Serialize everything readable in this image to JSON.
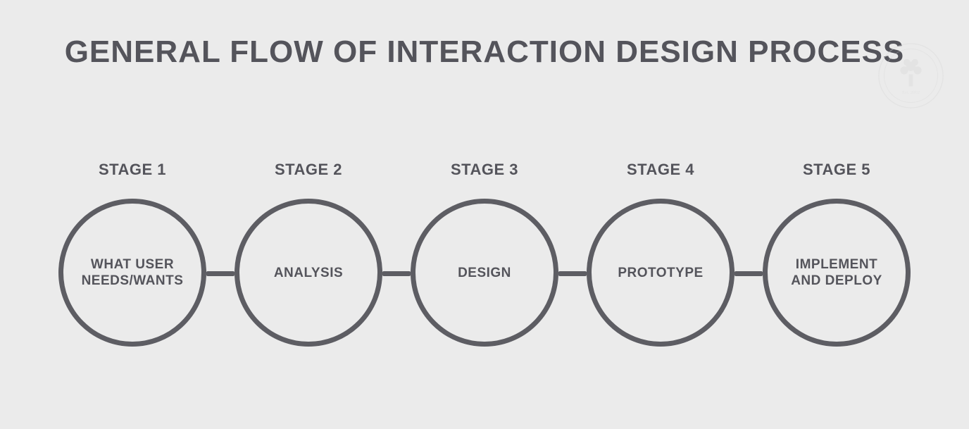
{
  "title": "GENERAL FLOW OF INTERACTION DESIGN PROCESS",
  "title_fontsize": 44,
  "title_color": "#54545b",
  "background_color": "#ebebeb",
  "stage_label_fontsize": 22,
  "stage_label_color": "#54545b",
  "circle_diameter": 210,
  "circle_border_width": 7,
  "circle_border_color": "#5d5d63",
  "circle_fill_color": "#ebebeb",
  "circle_text_fontsize": 19,
  "circle_text_color": "#54545b",
  "connector_width": 40,
  "connector_height": 7,
  "connector_color": "#5d5d63",
  "stages": [
    {
      "label": "STAGE 1",
      "content": "WHAT USER NEEDS/WANTS"
    },
    {
      "label": "STAGE 2",
      "content": "ANALYSIS"
    },
    {
      "label": "STAGE 3",
      "content": "DESIGN"
    },
    {
      "label": "STAGE 4",
      "content": "PROTOTYPE"
    },
    {
      "label": "STAGE 5",
      "content": "IMPLEMENT AND DEPLOY"
    }
  ],
  "watermark": {
    "stroke_color": "#d6d6d6",
    "text": "Est. 2002"
  }
}
